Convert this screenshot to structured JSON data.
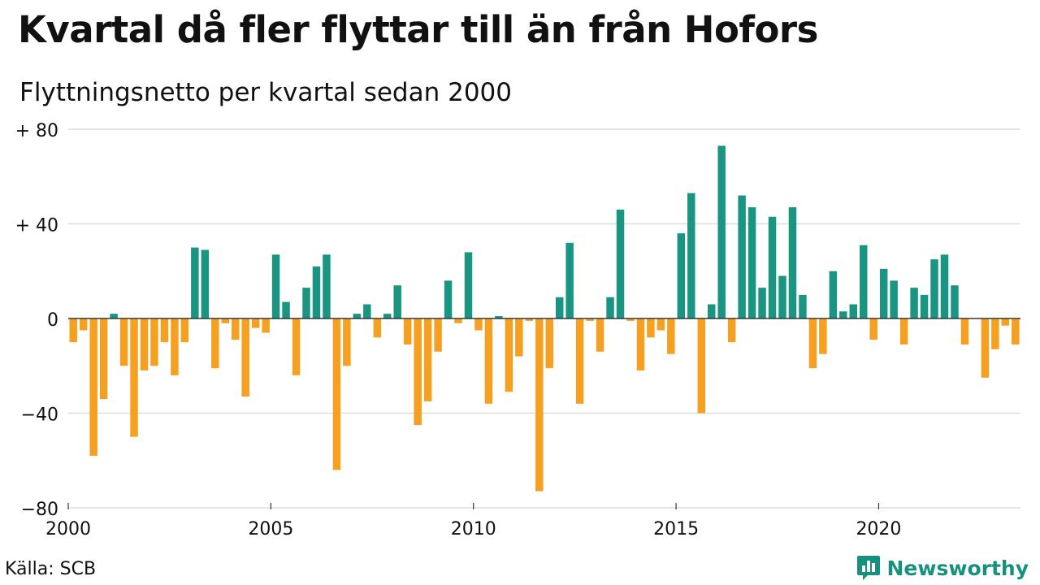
{
  "header": {
    "title": "Kvartal då fler flyttar till än från Hofors",
    "subtitle": "Flyttningsnetto per kvartal sedan 2000"
  },
  "footer": {
    "source": "Källa: SCB",
    "brand": "Newsworthy",
    "brand_icon": "bar-chart-speech-icon",
    "brand_color": "#17917f"
  },
  "chart_data": {
    "type": "bar",
    "title": "Kvartal då fler flyttar till än från Hofors",
    "subtitle": "Flyttningsnetto per kvartal sedan 2000",
    "xlabel": "",
    "ylabel": "",
    "ylim": [
      -80,
      80
    ],
    "xlim": [
      2000,
      2023.5
    ],
    "yticks": [
      {
        "value": 80,
        "label": "+ 80"
      },
      {
        "value": 40,
        "label": "+ 40"
      },
      {
        "value": 0,
        "label": "0"
      },
      {
        "value": -40,
        "label": "−40"
      },
      {
        "value": -80,
        "label": "−80"
      }
    ],
    "xticks": [
      {
        "value": 2000,
        "label": "2000"
      },
      {
        "value": 2005,
        "label": "2005"
      },
      {
        "value": 2010,
        "label": "2010"
      },
      {
        "value": 2015,
        "label": "2015"
      },
      {
        "value": 2020,
        "label": "2020"
      }
    ],
    "grid": true,
    "colors": {
      "positive": "#1a9582",
      "negative": "#f5a020",
      "grid": "#dddddd",
      "axis": "#333333"
    },
    "categories": [
      "2000 Q1",
      "2000 Q2",
      "2000 Q3",
      "2000 Q4",
      "2001 Q1",
      "2001 Q2",
      "2001 Q3",
      "2001 Q4",
      "2002 Q1",
      "2002 Q2",
      "2002 Q3",
      "2002 Q4",
      "2003 Q1",
      "2003 Q2",
      "2003 Q3",
      "2003 Q4",
      "2004 Q1",
      "2004 Q2",
      "2004 Q3",
      "2004 Q4",
      "2005 Q1",
      "2005 Q2",
      "2005 Q3",
      "2005 Q4",
      "2006 Q1",
      "2006 Q2",
      "2006 Q3",
      "2006 Q4",
      "2007 Q1",
      "2007 Q2",
      "2007 Q3",
      "2007 Q4",
      "2008 Q1",
      "2008 Q2",
      "2008 Q3",
      "2008 Q4",
      "2009 Q1",
      "2009 Q2",
      "2009 Q3",
      "2009 Q4",
      "2010 Q1",
      "2010 Q2",
      "2010 Q3",
      "2010 Q4",
      "2011 Q1",
      "2011 Q2",
      "2011 Q3",
      "2011 Q4",
      "2012 Q1",
      "2012 Q2",
      "2012 Q3",
      "2012 Q4",
      "2013 Q1",
      "2013 Q2",
      "2013 Q3",
      "2013 Q4",
      "2014 Q1",
      "2014 Q2",
      "2014 Q3",
      "2014 Q4",
      "2015 Q1",
      "2015 Q2",
      "2015 Q3",
      "2015 Q4",
      "2016 Q1",
      "2016 Q2",
      "2016 Q3",
      "2016 Q4",
      "2017 Q1",
      "2017 Q2",
      "2017 Q3",
      "2017 Q4",
      "2018 Q1",
      "2018 Q2",
      "2018 Q3",
      "2018 Q4",
      "2019 Q1",
      "2019 Q2",
      "2019 Q3",
      "2019 Q4",
      "2020 Q1",
      "2020 Q2",
      "2020 Q3",
      "2020 Q4",
      "2021 Q1",
      "2021 Q2",
      "2021 Q3",
      "2021 Q4",
      "2022 Q1",
      "2022 Q2",
      "2022 Q3",
      "2022 Q4",
      "2023 Q1",
      "2023 Q2"
    ],
    "values": [
      -10,
      -5,
      -58,
      -34,
      2,
      -20,
      -50,
      -22,
      -20,
      -10,
      -24,
      -10,
      30,
      29,
      -21,
      -2,
      -9,
      -33,
      -4,
      -6,
      27,
      7,
      -24,
      13,
      22,
      27,
      -64,
      -20,
      2,
      6,
      -8,
      2,
      14,
      -11,
      -45,
      -35,
      -14,
      16,
      -2,
      28,
      -5,
      -36,
      1,
      -31,
      -16,
      -1,
      -73,
      -21,
      9,
      32,
      -36,
      -1,
      -14,
      9,
      46,
      -1,
      -22,
      -8,
      -5,
      -15,
      36,
      53,
      -40,
      6,
      73,
      -10,
      52,
      47,
      13,
      43,
      18,
      47,
      10,
      -21,
      -15,
      20,
      3,
      6,
      31,
      -9,
      21,
      16,
      -11,
      13,
      10,
      25,
      27,
      14,
      -11,
      0,
      -25,
      -13,
      -3,
      -11
    ]
  }
}
